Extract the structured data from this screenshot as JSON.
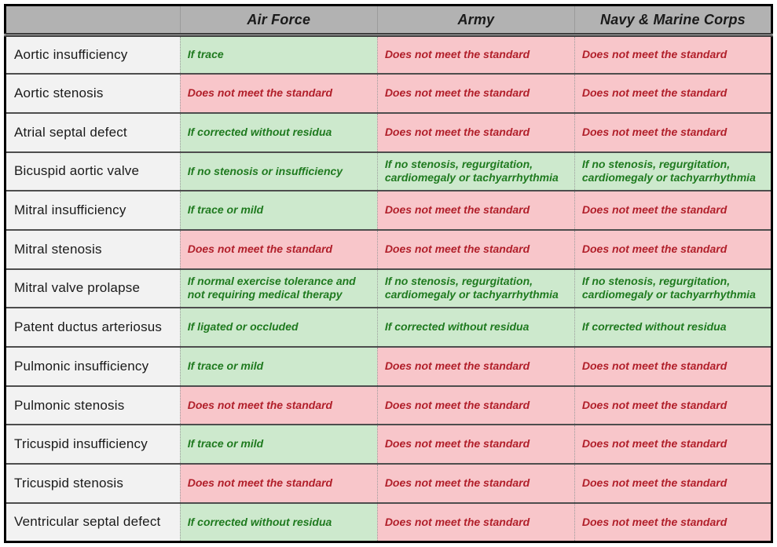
{
  "table": {
    "columns": [
      {
        "label": ""
      },
      {
        "label": "Air Force"
      },
      {
        "label": "Army"
      },
      {
        "label": "Navy & Marine Corps"
      }
    ],
    "fail_text": "Does not meet the standard",
    "rows": [
      {
        "condition": "Aortic insufficiency",
        "cells": [
          {
            "text": "If trace",
            "status": "pass"
          },
          {
            "text": "Does not meet the standard",
            "status": "fail"
          },
          {
            "text": "Does not meet the standard",
            "status": "fail"
          }
        ]
      },
      {
        "condition": "Aortic stenosis",
        "cells": [
          {
            "text": "Does not meet the standard",
            "status": "fail"
          },
          {
            "text": "Does not meet the standard",
            "status": "fail"
          },
          {
            "text": "Does not meet the standard",
            "status": "fail"
          }
        ]
      },
      {
        "condition": "Atrial septal defect",
        "cells": [
          {
            "text": "If corrected without residua",
            "status": "pass"
          },
          {
            "text": "Does not meet the standard",
            "status": "fail"
          },
          {
            "text": "Does not meet the standard",
            "status": "fail"
          }
        ]
      },
      {
        "condition": "Bicuspid aortic valve",
        "cells": [
          {
            "text": "If no stenosis or insufficiency",
            "status": "pass"
          },
          {
            "text": "If no stenosis, regurgitation, cardiomegaly or tachyarrhythmia",
            "status": "pass"
          },
          {
            "text": "If no stenosis, regurgitation, cardiomegaly or tachyarrhythmia",
            "status": "pass"
          }
        ]
      },
      {
        "condition": "Mitral insufficiency",
        "cells": [
          {
            "text": "If trace or mild",
            "status": "pass"
          },
          {
            "text": "Does not meet the standard",
            "status": "fail"
          },
          {
            "text": "Does not meet the standard",
            "status": "fail"
          }
        ]
      },
      {
        "condition": "Mitral stenosis",
        "cells": [
          {
            "text": "Does not meet the standard",
            "status": "fail"
          },
          {
            "text": "Does not meet the standard",
            "status": "fail"
          },
          {
            "text": "Does not meet the standard",
            "status": "fail"
          }
        ]
      },
      {
        "condition": "Mitral valve prolapse",
        "cells": [
          {
            "text": "If normal exercise tolerance and not requiring medical therapy",
            "status": "pass"
          },
          {
            "text": "If no stenosis, regurgitation, cardiomegaly or tachyarrhythmia",
            "status": "pass"
          },
          {
            "text": "If no stenosis, regurgitation, cardiomegaly or tachyarrhythmia",
            "status": "pass"
          }
        ]
      },
      {
        "condition": "Patent ductus arteriosus",
        "cells": [
          {
            "text": "If ligated or occluded",
            "status": "pass"
          },
          {
            "text": "If corrected without residua",
            "status": "pass"
          },
          {
            "text": "If corrected without residua",
            "status": "pass"
          }
        ]
      },
      {
        "condition": "Pulmonic insufficiency",
        "cells": [
          {
            "text": "If trace or mild",
            "status": "pass"
          },
          {
            "text": "Does not meet the standard",
            "status": "fail"
          },
          {
            "text": "Does not meet the standard",
            "status": "fail"
          }
        ]
      },
      {
        "condition": "Pulmonic stenosis",
        "cells": [
          {
            "text": "Does not meet the standard",
            "status": "fail"
          },
          {
            "text": "Does not meet the standard",
            "status": "fail"
          },
          {
            "text": "Does not meet the standard",
            "status": "fail"
          }
        ]
      },
      {
        "condition": "Tricuspid insufficiency",
        "cells": [
          {
            "text": "If trace or mild",
            "status": "pass"
          },
          {
            "text": "Does not meet the standard",
            "status": "fail"
          },
          {
            "text": "Does not meet the standard",
            "status": "fail"
          }
        ]
      },
      {
        "condition": "Tricuspid stenosis",
        "cells": [
          {
            "text": "Does not meet the standard",
            "status": "fail"
          },
          {
            "text": "Does not meet the standard",
            "status": "fail"
          },
          {
            "text": "Does not meet the standard",
            "status": "fail"
          }
        ]
      },
      {
        "condition": "Ventricular septal defect",
        "cells": [
          {
            "text": "If corrected without residua",
            "status": "pass"
          },
          {
            "text": "Does not meet the standard",
            "status": "fail"
          },
          {
            "text": "Does not meet the standard",
            "status": "fail"
          }
        ]
      }
    ]
  },
  "colors": {
    "pass_bg": "#cde9cd",
    "pass_text": "#1f7a1f",
    "fail_bg": "#f8c6ca",
    "fail_text": "#b11f2a",
    "header_bg": "#b2b2b2",
    "condition_bg": "#f2f2f2",
    "row_divider": "#4d4d4d",
    "outer_border": "#000000"
  }
}
